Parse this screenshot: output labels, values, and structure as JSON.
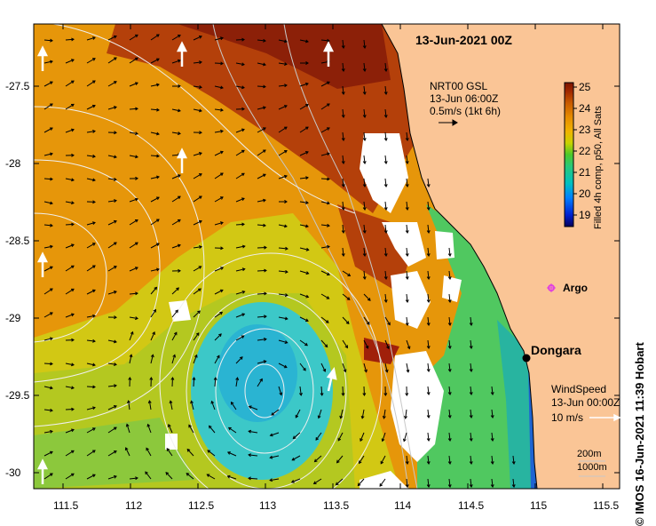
{
  "map": {
    "date_title": "13-Jun-2021 00Z",
    "current_legend": {
      "line1": "NRT00 GSL",
      "line2": "13-Jun 06:00Z",
      "line3": "0.5m/s (1kt 6h)"
    },
    "colorbar": {
      "label": "Filled 4h comp, p50, All Sats",
      "ticks": [
        "25",
        "24",
        "23",
        "22",
        "21",
        "20",
        "19"
      ],
      "min": 18.5,
      "max": 25,
      "colors": [
        "#05005a",
        "#0020d0",
        "#0080ff",
        "#00c0c0",
        "#28c878",
        "#4cc82a",
        "#c8d200",
        "#f0b400",
        "#e68c00",
        "#c85a00",
        "#a02800",
        "#7a1400"
      ]
    },
    "argo_label": "Argo",
    "place_label": "Dongara",
    "wind_legend": {
      "line1": "WindSpeed",
      "line2": "13-Jun 00:00Z",
      "line3": "10 m/s"
    },
    "depth_legend": [
      "200m",
      "1000m"
    ],
    "credit": "© IMOS 16-Jun-2021 11:39 Hobart",
    "lat_ticks": [
      "-27.5",
      "-28",
      "-28.5",
      "-29",
      "-29.5",
      "-30"
    ],
    "lon_ticks": [
      "111.5",
      "112",
      "112.5",
      "113",
      "113.5",
      "114",
      "114.5",
      "115",
      "115.5"
    ],
    "colors": {
      "land": "#fac596",
      "warm_water": "#e6960a",
      "hot_water": "#b4400a",
      "cool_water": "#d2c814",
      "eddy_core": "#3cc8c8",
      "cloud": "#ffffff",
      "argo_marker": "#e040e0"
    }
  }
}
